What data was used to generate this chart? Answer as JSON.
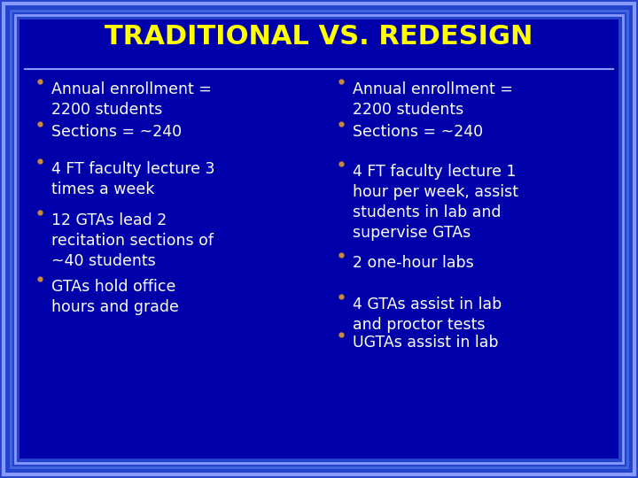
{
  "title": "TRADITIONAL VS. REDESIGN",
  "title_color": "#FFFF00",
  "title_fontsize": 22,
  "bg_outer": "#2244CC",
  "bg_inner": "#0000AA",
  "border_color1": "#8899FF",
  "border_color2": "#4466DD",
  "text_color": "#FFFFFF",
  "bullet_color": "#CC8833",
  "left_bullets": [
    "Annual enrollment =\n2200 students",
    "Sections = ~240",
    "4 FT faculty lecture 3\ntimes a week",
    "12 GTAs lead 2\nrecitation sections of\n~40 students",
    "GTAs hold office\nhours and grade"
  ],
  "right_bullets": [
    "Annual enrollment =\n2200 students",
    "Sections = ~240",
    "4 FT faculty lecture 1\nhour per week, assist\nstudents in lab and\nsupervise GTAs",
    "2 one-hour labs",
    "4 GTAs assist in lab\nand proctor tests",
    "UGTAs assist in lab"
  ],
  "text_fontsize": 12.5
}
